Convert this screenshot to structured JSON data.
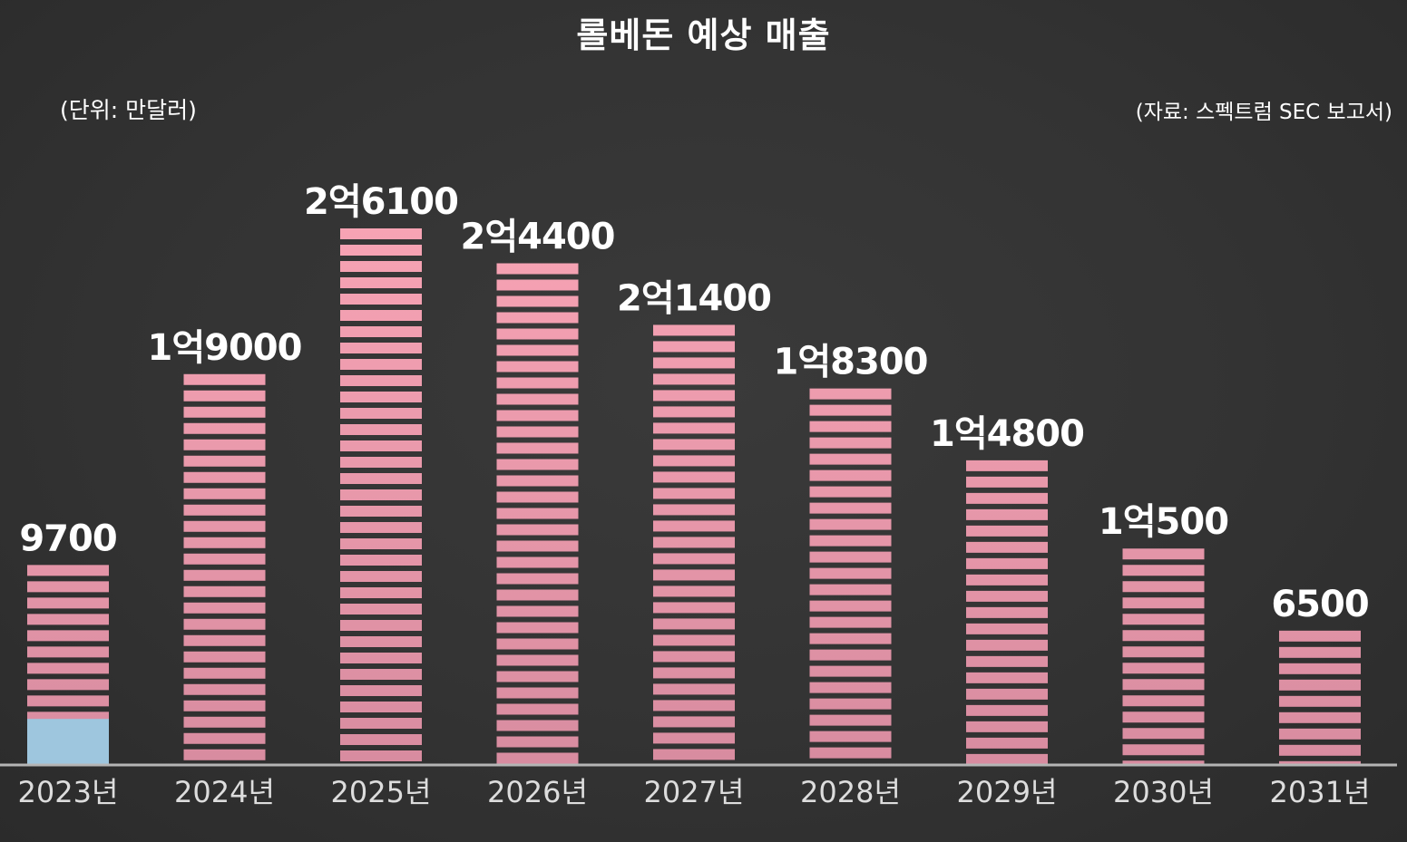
{
  "title": "롤베돈 예상 매출",
  "unit_note": "(단위: 만달러)",
  "source_note": "(자료: 스펙트럼 SEC 보고서)",
  "colors": {
    "background": "#333333",
    "bar": "#f7a3b4",
    "bar_bottom": "#d88ca0",
    "highlight": "#9ec6de",
    "baseline": "#b5b5b5",
    "text": "#ffffff"
  },
  "chart_data": {
    "type": "bar",
    "title": "롤베돈 예상 매출",
    "unit": "만달러",
    "categories": [
      "2023년",
      "2024년",
      "2025년",
      "2026년",
      "2027년",
      "2028년",
      "2029년",
      "2030년",
      "2031년"
    ],
    "values": [
      9700,
      19000,
      26100,
      24400,
      21400,
      18300,
      14800,
      10500,
      6500
    ],
    "value_labels": [
      "9700",
      "1억9000",
      "2억6100",
      "2억4400",
      "2억1400",
      "1억8300",
      "1억4800",
      "1억500",
      "6500"
    ],
    "highlight": {
      "category": "2023년",
      "value": 2200
    },
    "grid": false,
    "legend": "none",
    "ylim": [
      0,
      26100
    ]
  }
}
